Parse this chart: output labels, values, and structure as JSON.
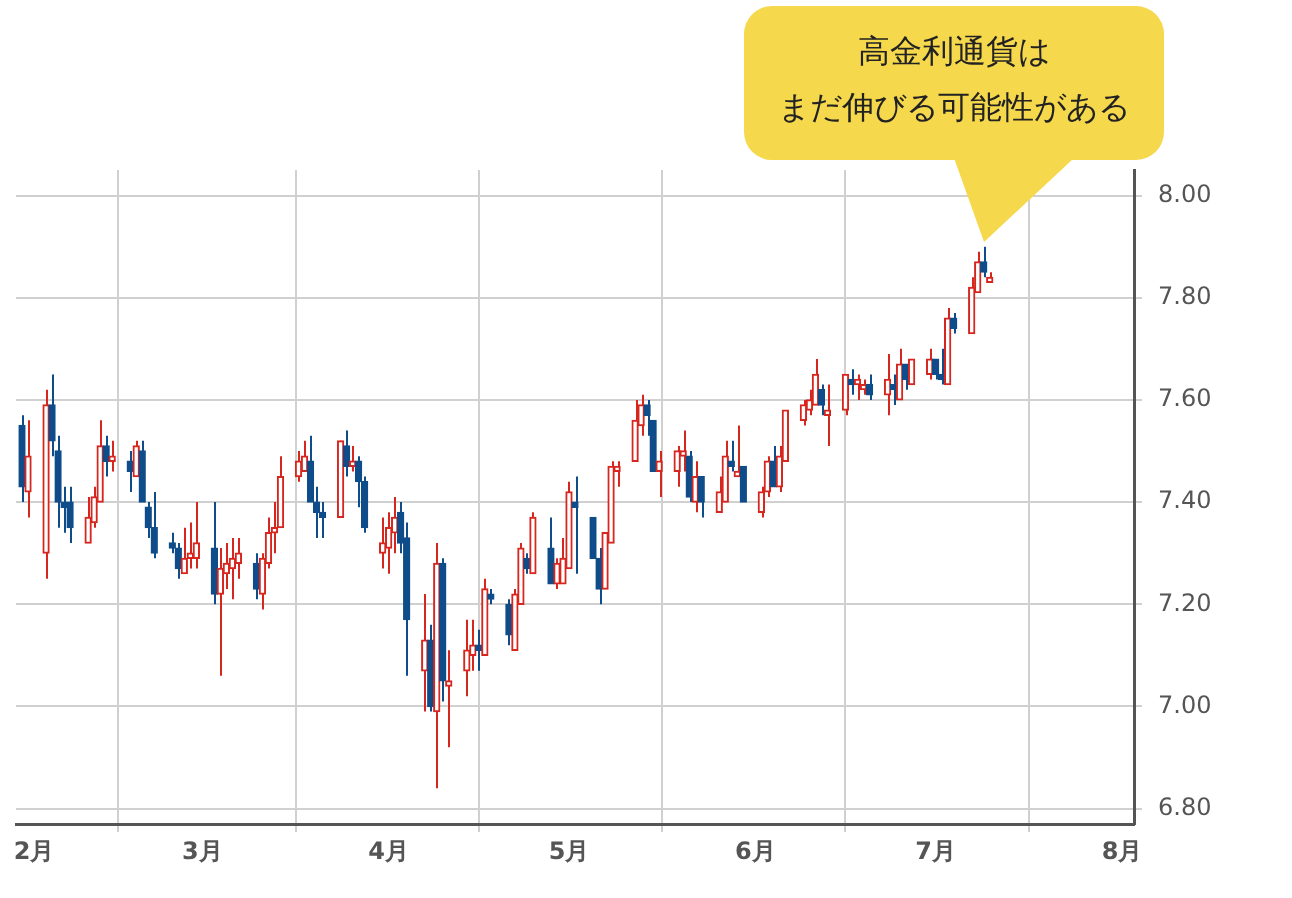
{
  "chart_data": {
    "type": "candlestick",
    "x": [
      "--01-30",
      "--01-31",
      "--02-03",
      "--02-04",
      "--02-05",
      "--02-06",
      "--02-07",
      "--02-10",
      "--02-11",
      "--02-12",
      "--02-13",
      "--02-14",
      "--02-17",
      "--02-18",
      "--02-19",
      "--02-20",
      "--02-21",
      "--02-24",
      "--02-25",
      "--02-26",
      "--02-27",
      "--02-28",
      "--03-03",
      "--03-04",
      "--03-05",
      "--03-06",
      "--03-07",
      "--03-10",
      "--03-11",
      "--03-12",
      "--03-13",
      "--03-14",
      "--03-17",
      "--03-18",
      "--03-19",
      "--03-20",
      "--03-21",
      "--03-24",
      "--03-25",
      "--03-26",
      "--03-27",
      "--03-28",
      "--03-31",
      "--04-01",
      "--04-02",
      "--04-03",
      "--04-04",
      "--04-07",
      "--04-08",
      "--04-09",
      "--04-10",
      "--04-11",
      "--04-14",
      "--04-15",
      "--04-16",
      "--04-17",
      "--04-18",
      "--04-21",
      "--04-22",
      "--04-23",
      "--04-24",
      "--04-25",
      "--04-28",
      "--04-29",
      "--04-30",
      "--05-01",
      "--05-02",
      "--05-05",
      "--05-06",
      "--05-07",
      "--05-08",
      "--05-09",
      "--05-12",
      "--05-13",
      "--05-14",
      "--05-15",
      "--05-16",
      "--05-19",
      "--05-20",
      "--05-21",
      "--05-22",
      "--05-23",
      "--05-26",
      "--05-27",
      "--05-28",
      "--05-29",
      "--05-30",
      "--06-02",
      "--06-03",
      "--06-04",
      "--06-05",
      "--06-06",
      "--06-09",
      "--06-10",
      "--06-11",
      "--06-12",
      "--06-13",
      "--06-16",
      "--06-17",
      "--06-18",
      "--06-19",
      "--06-20",
      "--06-23",
      "--06-24",
      "--06-25",
      "--06-26",
      "--06-27",
      "--06-30",
      "--07-01",
      "--07-02",
      "--07-03",
      "--07-04",
      "--07-07",
      "--07-08",
      "--07-09",
      "--07-10"
    ],
    "ohlc": [
      [
        7.55,
        7.57,
        7.4,
        7.43
      ],
      [
        7.42,
        7.56,
        7.37,
        7.49
      ],
      [
        7.3,
        7.62,
        7.25,
        7.59
      ],
      [
        7.59,
        7.65,
        7.49,
        7.52
      ],
      [
        7.5,
        7.53,
        7.35,
        7.4
      ],
      [
        7.4,
        7.43,
        7.34,
        7.39
      ],
      [
        7.4,
        7.43,
        7.32,
        7.35
      ],
      [
        7.32,
        7.41,
        7.32,
        7.37
      ],
      [
        7.36,
        7.43,
        7.35,
        7.41
      ],
      [
        7.4,
        7.56,
        7.4,
        7.51
      ],
      [
        7.51,
        7.53,
        7.45,
        7.48
      ],
      [
        7.48,
        7.52,
        7.46,
        7.49
      ],
      [
        7.48,
        7.5,
        7.42,
        7.46
      ],
      [
        7.45,
        7.52,
        7.45,
        7.51
      ],
      [
        7.5,
        7.52,
        7.4,
        7.4
      ],
      [
        7.39,
        7.4,
        7.33,
        7.35
      ],
      [
        7.35,
        7.42,
        7.29,
        7.3
      ],
      [
        7.32,
        7.34,
        7.3,
        7.31
      ],
      [
        7.31,
        7.32,
        7.25,
        7.27
      ],
      [
        7.26,
        7.35,
        7.26,
        7.29
      ],
      [
        7.29,
        7.36,
        7.27,
        7.3
      ],
      [
        7.29,
        7.4,
        7.27,
        7.32
      ],
      [
        7.31,
        7.4,
        7.2,
        7.22
      ],
      [
        7.22,
        7.31,
        7.06,
        7.27
      ],
      [
        7.26,
        7.32,
        7.23,
        7.28
      ],
      [
        7.27,
        7.33,
        7.21,
        7.29
      ],
      [
        7.28,
        7.33,
        7.25,
        7.3
      ],
      [
        7.28,
        7.3,
        7.21,
        7.23
      ],
      [
        7.22,
        7.3,
        7.19,
        7.29
      ],
      [
        7.28,
        7.37,
        7.27,
        7.34
      ],
      [
        7.34,
        7.4,
        7.3,
        7.35
      ],
      [
        7.35,
        7.49,
        7.35,
        7.45
      ],
      [
        7.45,
        7.5,
        7.44,
        7.48
      ],
      [
        7.46,
        7.52,
        7.46,
        7.49
      ],
      [
        7.48,
        7.53,
        7.4,
        7.4
      ],
      [
        7.4,
        7.43,
        7.33,
        7.38
      ],
      [
        7.38,
        7.4,
        7.33,
        7.37
      ],
      [
        7.37,
        7.52,
        7.37,
        7.52
      ],
      [
        7.51,
        7.54,
        7.45,
        7.47
      ],
      [
        7.47,
        7.51,
        7.46,
        7.48
      ],
      [
        7.48,
        7.49,
        7.39,
        7.44
      ],
      [
        7.44,
        7.45,
        7.34,
        7.35
      ],
      [
        7.3,
        7.37,
        7.27,
        7.32
      ],
      [
        7.31,
        7.38,
        7.26,
        7.35
      ],
      [
        7.34,
        7.41,
        7.3,
        7.37
      ],
      [
        7.38,
        7.4,
        7.3,
        7.32
      ],
      [
        7.33,
        7.36,
        7.06,
        7.17
      ],
      [
        7.07,
        7.22,
        6.99,
        7.13
      ],
      [
        7.13,
        7.16,
        6.99,
        7.0
      ],
      [
        6.99,
        7.32,
        6.84,
        7.28
      ],
      [
        7.28,
        7.29,
        7.01,
        7.05
      ],
      [
        7.04,
        7.11,
        6.92,
        7.05
      ],
      [
        7.07,
        7.17,
        7.02,
        7.11
      ],
      [
        7.1,
        7.17,
        7.07,
        7.12
      ],
      [
        7.12,
        7.15,
        7.07,
        7.11
      ],
      [
        7.1,
        7.25,
        7.1,
        7.23
      ],
      [
        7.22,
        7.23,
        7.2,
        7.21
      ],
      [
        7.2,
        7.21,
        7.12,
        7.14
      ],
      [
        7.11,
        7.23,
        7.11,
        7.22
      ],
      [
        7.2,
        7.32,
        7.2,
        7.31
      ],
      [
        7.29,
        7.3,
        7.26,
        7.27
      ],
      [
        7.26,
        7.38,
        7.26,
        7.37
      ],
      [
        7.31,
        7.37,
        7.24,
        7.24
      ],
      [
        7.24,
        7.29,
        7.23,
        7.28
      ],
      [
        7.24,
        7.33,
        7.24,
        7.29
      ],
      [
        7.27,
        7.44,
        7.27,
        7.42
      ],
      [
        7.4,
        7.45,
        7.26,
        7.39
      ],
      [
        7.37,
        7.37,
        7.29,
        7.29
      ],
      [
        7.29,
        7.31,
        7.2,
        7.23
      ],
      [
        7.23,
        7.34,
        7.23,
        7.34
      ],
      [
        7.32,
        7.48,
        7.32,
        7.47
      ],
      [
        7.46,
        7.48,
        7.43,
        7.47
      ],
      [
        7.48,
        7.6,
        7.48,
        7.56
      ],
      [
        7.55,
        7.61,
        7.53,
        7.59
      ],
      [
        7.59,
        7.6,
        7.53,
        7.57
      ],
      [
        7.56,
        7.56,
        7.46,
        7.46
      ],
      [
        7.46,
        7.5,
        7.41,
        7.48
      ],
      [
        7.46,
        7.51,
        7.43,
        7.5
      ],
      [
        7.49,
        7.54,
        7.46,
        7.5
      ],
      [
        7.49,
        7.5,
        7.4,
        7.41
      ],
      [
        7.4,
        7.48,
        7.38,
        7.45
      ],
      [
        7.45,
        7.45,
        7.37,
        7.4
      ],
      [
        7.38,
        7.45,
        7.38,
        7.42
      ],
      [
        7.4,
        7.52,
        7.4,
        7.49
      ],
      [
        7.48,
        7.52,
        7.46,
        7.47
      ],
      [
        7.45,
        7.55,
        7.45,
        7.46
      ],
      [
        7.47,
        7.47,
        7.4,
        7.4
      ],
      [
        7.38,
        7.43,
        7.37,
        7.42
      ],
      [
        7.42,
        7.49,
        7.41,
        7.48
      ],
      [
        7.48,
        7.51,
        7.43,
        7.43
      ],
      [
        7.43,
        7.51,
        7.42,
        7.49
      ],
      [
        7.48,
        7.58,
        7.48,
        7.58
      ],
      [
        7.56,
        7.6,
        7.55,
        7.59
      ],
      [
        7.58,
        7.62,
        7.57,
        7.6
      ],
      [
        7.59,
        7.68,
        7.59,
        7.65
      ],
      [
        7.62,
        7.63,
        7.57,
        7.59
      ],
      [
        7.57,
        7.63,
        7.51,
        7.58
      ],
      [
        7.58,
        7.65,
        7.57,
        7.65
      ],
      [
        7.64,
        7.66,
        7.61,
        7.63
      ],
      [
        7.63,
        7.65,
        7.6,
        7.64
      ],
      [
        7.62,
        7.64,
        7.61,
        7.63
      ],
      [
        7.63,
        7.65,
        7.6,
        7.61
      ],
      [
        7.61,
        7.69,
        7.57,
        7.64
      ],
      [
        7.63,
        7.65,
        7.59,
        7.62
      ],
      [
        7.6,
        7.7,
        7.6,
        7.67
      ],
      [
        7.67,
        7.67,
        7.62,
        7.64
      ],
      [
        7.63,
        7.68,
        7.63,
        7.68
      ],
      [
        7.65,
        7.7,
        7.64,
        7.68
      ],
      [
        7.68,
        7.68,
        7.64,
        7.65
      ],
      [
        7.65,
        7.7,
        7.63,
        7.64
      ],
      [
        7.63,
        7.78,
        7.63,
        7.76
      ],
      [
        7.76,
        7.77,
        7.73,
        7.74
      ],
      [
        7.73,
        7.84,
        7.73,
        7.82
      ],
      [
        7.81,
        7.89,
        7.81,
        7.87
      ],
      [
        7.87,
        7.9,
        7.84,
        7.85
      ],
      [
        7.83,
        7.85,
        7.83,
        7.84
      ]
    ],
    "colors": [
      "#0f4c8a",
      "#d7261e",
      "#d7261e",
      "#0f4c8a",
      "#0f4c8a",
      "#0f4c8a",
      "#0f4c8a",
      "#d7261e",
      "#d7261e",
      "#d7261e",
      "#0f4c8a",
      "#d7261e",
      "#0f4c8a",
      "#d7261e",
      "#0f4c8a",
      "#0f4c8a",
      "#0f4c8a",
      "#0f4c8a",
      "#0f4c8a",
      "#d7261e",
      "#d7261e",
      "#d7261e",
      "#0f4c8a",
      "#d7261e",
      "#d7261e",
      "#d7261e",
      "#d7261e",
      "#0f4c8a",
      "#d7261e",
      "#d7261e",
      "#d7261e",
      "#d7261e",
      "#d7261e",
      "#d7261e",
      "#0f4c8a",
      "#0f4c8a",
      "#0f4c8a",
      "#d7261e",
      "#0f4c8a",
      "#d7261e",
      "#0f4c8a",
      "#0f4c8a",
      "#d7261e",
      "#d7261e",
      "#d7261e",
      "#0f4c8a",
      "#0f4c8a",
      "#d7261e",
      "#0f4c8a",
      "#d7261e",
      "#0f4c8a",
      "#d7261e",
      "#d7261e",
      "#d7261e",
      "#0f4c8a",
      "#d7261e",
      "#0f4c8a",
      "#0f4c8a",
      "#d7261e",
      "#d7261e",
      "#0f4c8a",
      "#d7261e",
      "#0f4c8a",
      "#d7261e",
      "#d7261e",
      "#d7261e",
      "#0f4c8a",
      "#0f4c8a",
      "#0f4c8a",
      "#d7261e",
      "#d7261e",
      "#d7261e",
      "#d7261e",
      "#d7261e",
      "#0f4c8a",
      "#0f4c8a",
      "#d7261e",
      "#d7261e",
      "#d7261e",
      "#0f4c8a",
      "#d7261e",
      "#0f4c8a",
      "#d7261e",
      "#d7261e",
      "#0f4c8a",
      "#d7261e",
      "#0f4c8a",
      "#d7261e",
      "#d7261e",
      "#0f4c8a",
      "#d7261e",
      "#d7261e",
      "#d7261e",
      "#d7261e",
      "#d7261e",
      "#0f4c8a",
      "#d7261e",
      "#d7261e",
      "#0f4c8a",
      "#d7261e",
      "#d7261e",
      "#0f4c8a",
      "#d7261e",
      "#0f4c8a",
      "#d7261e",
      "#0f4c8a",
      "#d7261e",
      "#d7261e",
      "#0f4c8a",
      "#0f4c8a",
      "#d7261e",
      "#0f4c8a",
      "#d7261e",
      "#d7261e",
      "#0f4c8a",
      "#d7261e"
    ],
    "xlim": [
      "--01-29",
      "--08-03"
    ],
    "xticks": [
      {
        "value": "--02-01",
        "label": "2月"
      },
      {
        "value": "--03-01",
        "label": "3月"
      },
      {
        "value": "--04-01",
        "label": "4月"
      },
      {
        "value": "--05-01",
        "label": "5月"
      },
      {
        "value": "--06-01",
        "label": "6月"
      },
      {
        "value": "--07-01",
        "label": "7月"
      },
      {
        "value": "--08-01",
        "label": "8月"
      }
    ],
    "ylim": [
      6.77,
      8.05
    ],
    "yticks": [
      {
        "value": 6.8,
        "label": "6.80"
      },
      {
        "value": 7,
        "label": "7.00"
      },
      {
        "value": 7.2,
        "label": "7.20"
      },
      {
        "value": 7.4,
        "label": "7.40"
      },
      {
        "value": 7.6,
        "label": "7.60"
      },
      {
        "value": 7.8,
        "label": "7.80"
      },
      {
        "value": 8,
        "label": "8.00"
      }
    ],
    "grid": true,
    "annotations": [
      "高金利通貨は",
      "まだ伸びる可能性がある"
    ]
  }
}
